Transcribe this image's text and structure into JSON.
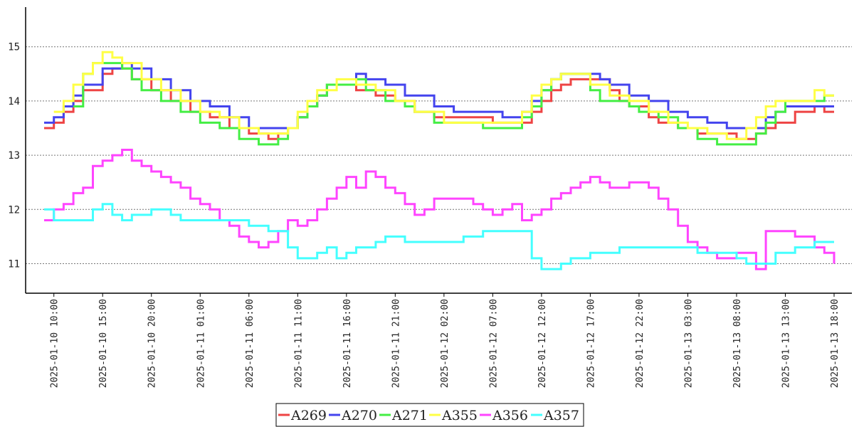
{
  "chart_data": {
    "type": "line",
    "title": "",
    "xlabel": "",
    "ylabel": "",
    "x_ticks": [
      "2025-01-10 10:00",
      "2025-01-10 15:00",
      "2025-01-10 20:00",
      "2025-01-11 01:00",
      "2025-01-11 06:00",
      "2025-01-11 11:00",
      "2025-01-11 16:00",
      "2025-01-11 21:00",
      "2025-01-12 02:00",
      "2025-01-12 07:00",
      "2025-01-12 12:00",
      "2025-01-12 17:00",
      "2025-01-12 22:00",
      "2025-01-13 03:00",
      "2025-01-13 08:00",
      "2025-01-13 13:00",
      "2025-01-13 18:00"
    ],
    "xlim": [
      "2025-01-10 09:00",
      "2025-01-13 18:00"
    ],
    "y_ticks": [
      11,
      12,
      13,
      14,
      15
    ],
    "ylim": [
      10.45,
      15.75
    ],
    "grid": "horizontal dotted",
    "legend": "bottom-center",
    "series": [
      {
        "name": "A269",
        "color": "#ee4444",
        "x": [
          "2025-01-10 09:00",
          "2025-01-10 10:00",
          "2025-01-10 11:00",
          "2025-01-10 12:00",
          "2025-01-10 13:00",
          "2025-01-10 15:00",
          "2025-01-10 16:00",
          "2025-01-10 17:00",
          "2025-01-10 18:00",
          "2025-01-10 20:00",
          "2025-01-10 22:00",
          "2025-01-11 00:00",
          "2025-01-11 02:00",
          "2025-01-11 04:00",
          "2025-01-11 06:00",
          "2025-01-11 08:00",
          "2025-01-11 09:00",
          "2025-01-11 10:00",
          "2025-01-11 11:00",
          "2025-01-11 12:00",
          "2025-01-11 13:00",
          "2025-01-11 14:00",
          "2025-01-11 16:00",
          "2025-01-11 17:00",
          "2025-01-11 19:00",
          "2025-01-11 21:00",
          "2025-01-11 23:00",
          "2025-01-12 01:00",
          "2025-01-12 02:00",
          "2025-01-12 04:00",
          "2025-01-12 07:00",
          "2025-01-12 10:00",
          "2025-01-12 11:00",
          "2025-01-12 12:00",
          "2025-01-12 13:00",
          "2025-01-12 14:00",
          "2025-01-12 15:00",
          "2025-01-12 16:00",
          "2025-01-12 19:00",
          "2025-01-12 20:00",
          "2025-01-12 21:00",
          "2025-01-12 23:00",
          "2025-01-13 00:00",
          "2025-01-13 02:00",
          "2025-01-13 04:00",
          "2025-01-13 06:00",
          "2025-01-13 08:00",
          "2025-01-13 10:00",
          "2025-01-13 11:00",
          "2025-01-13 12:00",
          "2025-01-13 14:00",
          "2025-01-13 16:00",
          "2025-01-13 17:00",
          "2025-01-13 18:00"
        ],
        "values": [
          13.5,
          13.6,
          13.8,
          14.0,
          14.2,
          14.5,
          14.6,
          14.6,
          14.4,
          14.2,
          14.0,
          13.8,
          13.7,
          13.5,
          13.4,
          13.3,
          13.4,
          13.5,
          13.7,
          13.9,
          14.1,
          14.3,
          14.3,
          14.2,
          14.1,
          14.0,
          13.8,
          13.7,
          13.7,
          13.7,
          13.6,
          13.6,
          13.8,
          14.0,
          14.2,
          14.3,
          14.4,
          14.4,
          14.2,
          14.0,
          13.9,
          13.7,
          13.6,
          13.5,
          13.4,
          13.4,
          13.3,
          13.4,
          13.5,
          13.6,
          13.8,
          13.9,
          13.8,
          13.8
        ]
      },
      {
        "name": "A270",
        "color": "#4444ee",
        "x": [
          "2025-01-10 09:00",
          "2025-01-10 10:00",
          "2025-01-10 11:00",
          "2025-01-10 12:00",
          "2025-01-10 13:00",
          "2025-01-10 15:00",
          "2025-01-10 17:00",
          "2025-01-10 18:00",
          "2025-01-10 20:00",
          "2025-01-10 22:00",
          "2025-01-11 00:00",
          "2025-01-11 02:00",
          "2025-01-11 04:00",
          "2025-01-11 06:00",
          "2025-01-11 08:00",
          "2025-01-11 10:00",
          "2025-01-11 11:00",
          "2025-01-11 12:00",
          "2025-01-11 13:00",
          "2025-01-11 14:00",
          "2025-01-11 17:00",
          "2025-01-11 18:00",
          "2025-01-11 20:00",
          "2025-01-11 22:00",
          "2025-01-12 01:00",
          "2025-01-12 03:00",
          "2025-01-12 06:00",
          "2025-01-12 08:00",
          "2025-01-12 10:00",
          "2025-01-12 11:00",
          "2025-01-12 12:00",
          "2025-01-12 13:00",
          "2025-01-12 14:00",
          "2025-01-12 15:00",
          "2025-01-12 18:00",
          "2025-01-12 19:00",
          "2025-01-12 21:00",
          "2025-01-12 23:00",
          "2025-01-13 01:00",
          "2025-01-13 03:00",
          "2025-01-13 05:00",
          "2025-01-13 07:00",
          "2025-01-13 10:00",
          "2025-01-13 11:00",
          "2025-01-13 12:00",
          "2025-01-13 13:00",
          "2025-01-13 17:00",
          "2025-01-13 18:00"
        ],
        "values": [
          13.6,
          13.7,
          13.9,
          14.1,
          14.3,
          14.6,
          14.7,
          14.6,
          14.4,
          14.2,
          14.0,
          13.9,
          13.7,
          13.5,
          13.5,
          13.5,
          13.7,
          13.9,
          14.1,
          14.3,
          14.5,
          14.4,
          14.3,
          14.1,
          13.9,
          13.8,
          13.8,
          13.7,
          13.8,
          14.0,
          14.2,
          14.4,
          14.5,
          14.5,
          14.4,
          14.3,
          14.1,
          14.0,
          13.8,
          13.7,
          13.6,
          13.5,
          13.5,
          13.7,
          13.8,
          13.9,
          13.9,
          13.9
        ]
      },
      {
        "name": "A271",
        "color": "#44ee44",
        "x": [
          "2025-01-10 12:00",
          "2025-01-10 13:00",
          "2025-01-10 14:00",
          "2025-01-10 17:00",
          "2025-01-10 18:00",
          "2025-01-10 19:00",
          "2025-01-10 21:00",
          "2025-01-10 23:00",
          "2025-01-11 01:00",
          "2025-01-11 03:00",
          "2025-01-11 05:00",
          "2025-01-11 07:00",
          "2025-01-11 09:00",
          "2025-01-11 10:00",
          "2025-01-11 11:00",
          "2025-01-11 12:00",
          "2025-01-11 13:00",
          "2025-01-11 14:00",
          "2025-01-11 17:00",
          "2025-01-11 18:00",
          "2025-01-11 20:00",
          "2025-01-11 22:00",
          "2025-01-11 23:00",
          "2025-01-12 01:00",
          "2025-01-12 05:00",
          "2025-01-12 06:00",
          "2025-01-12 09:00",
          "2025-01-12 10:00",
          "2025-01-12 11:00",
          "2025-01-12 12:00",
          "2025-01-12 13:00",
          "2025-01-12 14:00",
          "2025-01-12 15:00",
          "2025-01-12 17:00",
          "2025-01-12 18:00",
          "2025-01-12 21:00",
          "2025-01-12 22:00",
          "2025-01-13 00:00",
          "2025-01-13 02:00",
          "2025-01-13 04:00",
          "2025-01-13 06:00",
          "2025-01-13 08:00",
          "2025-01-13 10:00",
          "2025-01-13 11:00",
          "2025-01-13 12:00",
          "2025-01-13 13:00",
          "2025-01-13 17:00",
          "2025-01-13 18:00"
        ],
        "values": [
          13.9,
          14.5,
          14.7,
          14.6,
          14.4,
          14.2,
          14.0,
          13.8,
          13.6,
          13.5,
          13.3,
          13.2,
          13.3,
          13.5,
          13.7,
          13.9,
          14.1,
          14.3,
          14.4,
          14.2,
          14.0,
          13.9,
          13.8,
          13.6,
          13.6,
          13.5,
          13.5,
          13.7,
          13.9,
          14.2,
          14.4,
          14.5,
          14.5,
          14.2,
          14.0,
          13.9,
          13.8,
          13.7,
          13.5,
          13.3,
          13.2,
          13.2,
          13.4,
          13.6,
          13.8,
          14.0,
          14.1,
          14.1
        ]
      },
      {
        "name": "A355",
        "color": "#ffff44",
        "x": [
          "2025-01-10 10:00",
          "2025-01-10 11:00",
          "2025-01-10 12:00",
          "2025-01-10 13:00",
          "2025-01-10 14:00",
          "2025-01-10 15:00",
          "2025-01-10 16:00",
          "2025-01-10 17:00",
          "2025-01-10 19:00",
          "2025-01-10 21:00",
          "2025-01-10 23:00",
          "2025-01-11 01:00",
          "2025-01-11 03:00",
          "2025-01-11 05:00",
          "2025-01-11 07:00",
          "2025-01-11 09:00",
          "2025-01-11 10:00",
          "2025-01-11 11:00",
          "2025-01-11 12:00",
          "2025-01-11 13:00",
          "2025-01-11 15:00",
          "2025-01-11 17:00",
          "2025-01-11 19:00",
          "2025-01-11 21:00",
          "2025-01-11 23:00",
          "2025-01-12 02:00",
          "2025-01-12 04:00",
          "2025-01-12 07:00",
          "2025-01-12 10:00",
          "2025-01-12 11:00",
          "2025-01-12 12:00",
          "2025-01-12 13:00",
          "2025-01-12 14:00",
          "2025-01-12 15:00",
          "2025-01-12 17:00",
          "2025-01-12 19:00",
          "2025-01-12 21:00",
          "2025-01-12 23:00",
          "2025-01-13 01:00",
          "2025-01-13 03:00",
          "2025-01-13 05:00",
          "2025-01-13 07:00",
          "2025-01-13 09:00",
          "2025-01-13 10:00",
          "2025-01-13 11:00",
          "2025-01-13 12:00",
          "2025-01-13 14:00",
          "2025-01-13 16:00",
          "2025-01-13 17:00",
          "2025-01-13 18:00"
        ],
        "values": [
          13.8,
          14.0,
          14.3,
          14.5,
          14.7,
          14.9,
          14.8,
          14.7,
          14.4,
          14.2,
          14.0,
          13.8,
          13.7,
          13.5,
          13.4,
          13.4,
          13.5,
          13.8,
          14.0,
          14.2,
          14.4,
          14.3,
          14.2,
          14.0,
          13.8,
          13.6,
          13.6,
          13.6,
          13.8,
          14.1,
          14.3,
          14.4,
          14.5,
          14.5,
          14.3,
          14.1,
          14.0,
          13.8,
          13.6,
          13.5,
          13.4,
          13.3,
          13.5,
          13.7,
          13.9,
          14.0,
          14.0,
          14.2,
          14.1,
          14.1
        ]
      },
      {
        "name": "A356",
        "color": "#ff44ff",
        "x": [
          "2025-01-10 09:00",
          "2025-01-10 10:00",
          "2025-01-10 11:00",
          "2025-01-10 12:00",
          "2025-01-10 13:00",
          "2025-01-10 14:00",
          "2025-01-10 15:00",
          "2025-01-10 16:00",
          "2025-01-10 17:00",
          "2025-01-10 18:00",
          "2025-01-10 19:00",
          "2025-01-10 20:00",
          "2025-01-10 21:00",
          "2025-01-10 22:00",
          "2025-01-10 23:00",
          "2025-01-11 00:00",
          "2025-01-11 01:00",
          "2025-01-11 02:00",
          "2025-01-11 03:00",
          "2025-01-11 04:00",
          "2025-01-11 05:00",
          "2025-01-11 06:00",
          "2025-01-11 07:00",
          "2025-01-11 08:00",
          "2025-01-11 09:00",
          "2025-01-11 10:00",
          "2025-01-11 11:00",
          "2025-01-11 12:00",
          "2025-01-11 13:00",
          "2025-01-11 14:00",
          "2025-01-11 15:00",
          "2025-01-11 16:00",
          "2025-01-11 17:00",
          "2025-01-11 18:00",
          "2025-01-11 19:00",
          "2025-01-11 20:00",
          "2025-01-11 21:00",
          "2025-01-11 22:00",
          "2025-01-11 23:00",
          "2025-01-12 00:00",
          "2025-01-12 01:00",
          "2025-01-12 02:00",
          "2025-01-12 03:00",
          "2025-01-12 04:00",
          "2025-01-12 05:00",
          "2025-01-12 06:00",
          "2025-01-12 07:00",
          "2025-01-12 08:00",
          "2025-01-12 09:00",
          "2025-01-12 10:00",
          "2025-01-12 11:00",
          "2025-01-12 12:00",
          "2025-01-12 13:00",
          "2025-01-12 14:00",
          "2025-01-12 15:00",
          "2025-01-12 16:00",
          "2025-01-12 17:00",
          "2025-01-12 18:00",
          "2025-01-12 19:00",
          "2025-01-12 20:00",
          "2025-01-12 21:00",
          "2025-01-12 22:00",
          "2025-01-12 23:00",
          "2025-01-13 00:00",
          "2025-01-13 01:00",
          "2025-01-13 02:00",
          "2025-01-13 03:00",
          "2025-01-13 04:00",
          "2025-01-13 05:00",
          "2025-01-13 06:00",
          "2025-01-13 07:00",
          "2025-01-13 08:00",
          "2025-01-13 09:00",
          "2025-01-13 10:00",
          "2025-01-13 11:00",
          "2025-01-13 12:00",
          "2025-01-13 13:00",
          "2025-01-13 14:00",
          "2025-01-13 15:00",
          "2025-01-13 16:00",
          "2025-01-13 17:00",
          "2025-01-13 18:00"
        ],
        "values": [
          11.8,
          12.0,
          12.1,
          12.3,
          12.4,
          12.8,
          12.9,
          13.0,
          13.1,
          12.9,
          12.8,
          12.7,
          12.6,
          12.5,
          12.4,
          12.2,
          12.1,
          12.0,
          11.8,
          11.7,
          11.5,
          11.4,
          11.3,
          11.4,
          11.6,
          11.8,
          11.7,
          11.8,
          12.0,
          12.2,
          12.4,
          12.6,
          12.4,
          12.7,
          12.6,
          12.4,
          12.3,
          12.1,
          11.9,
          12.0,
          12.2,
          12.2,
          12.2,
          12.2,
          12.1,
          12.0,
          11.9,
          12.0,
          12.1,
          11.8,
          11.9,
          12.0,
          12.2,
          12.3,
          12.4,
          12.5,
          12.6,
          12.5,
          12.4,
          12.4,
          12.5,
          12.5,
          12.4,
          12.2,
          12.0,
          11.7,
          11.4,
          11.3,
          11.2,
          11.1,
          11.1,
          11.2,
          11.2,
          10.9,
          11.6,
          11.6,
          11.6,
          11.5,
          11.5,
          11.3,
          11.2,
          11.0
        ]
      },
      {
        "name": "A357",
        "color": "#44ffff",
        "x": [
          "2025-01-10 09:00",
          "2025-01-10 10:00",
          "2025-01-10 11:00",
          "2025-01-10 12:00",
          "2025-01-10 13:00",
          "2025-01-10 14:00",
          "2025-01-10 15:00",
          "2025-01-10 16:00",
          "2025-01-10 17:00",
          "2025-01-10 18:00",
          "2025-01-10 19:00",
          "2025-01-10 20:00",
          "2025-01-10 21:00",
          "2025-01-10 22:00",
          "2025-01-10 23:00",
          "2025-01-11 00:00",
          "2025-01-11 02:00",
          "2025-01-11 04:00",
          "2025-01-11 06:00",
          "2025-01-11 08:00",
          "2025-01-11 09:00",
          "2025-01-11 10:00",
          "2025-01-11 11:00",
          "2025-01-11 12:00",
          "2025-01-11 13:00",
          "2025-01-11 14:00",
          "2025-01-11 15:00",
          "2025-01-11 16:00",
          "2025-01-11 17:00",
          "2025-01-11 18:00",
          "2025-01-11 19:00",
          "2025-01-11 20:00",
          "2025-01-11 22:00",
          "2025-01-12 00:00",
          "2025-01-12 02:00",
          "2025-01-12 04:00",
          "2025-01-12 06:00",
          "2025-01-12 08:00",
          "2025-01-12 09:00",
          "2025-01-12 10:00",
          "2025-01-12 11:00",
          "2025-01-12 12:00",
          "2025-01-12 13:00",
          "2025-01-12 14:00",
          "2025-01-12 15:00",
          "2025-01-12 16:00",
          "2025-01-12 17:00",
          "2025-01-12 18:00",
          "2025-01-12 20:00",
          "2025-01-12 22:00",
          "2025-01-13 00:00",
          "2025-01-13 02:00",
          "2025-01-13 04:00",
          "2025-01-13 06:00",
          "2025-01-13 08:00",
          "2025-01-13 09:00",
          "2025-01-13 10:00",
          "2025-01-13 11:00",
          "2025-01-13 12:00",
          "2025-01-13 13:00",
          "2025-01-13 14:00",
          "2025-01-13 15:00",
          "2025-01-13 16:00",
          "2025-01-13 17:00",
          "2025-01-13 18:00"
        ],
        "values": [
          12.0,
          11.8,
          11.8,
          11.8,
          11.8,
          12.0,
          12.1,
          11.9,
          11.8,
          11.9,
          11.9,
          12.0,
          12.0,
          11.9,
          11.8,
          11.8,
          11.8,
          11.8,
          11.7,
          11.6,
          11.6,
          11.3,
          11.1,
          11.1,
          11.2,
          11.3,
          11.1,
          11.2,
          11.3,
          11.3,
          11.4,
          11.5,
          11.4,
          11.4,
          11.4,
          11.5,
          11.6,
          11.6,
          11.6,
          11.6,
          11.1,
          10.9,
          10.9,
          11.0,
          11.1,
          11.1,
          11.2,
          11.2,
          11.3,
          11.3,
          11.3,
          11.3,
          11.2,
          11.2,
          11.1,
          11.0,
          11.0,
          11.0,
          11.2,
          11.2,
          11.3,
          11.3,
          11.4,
          11.4,
          11.4
        ]
      }
    ]
  }
}
